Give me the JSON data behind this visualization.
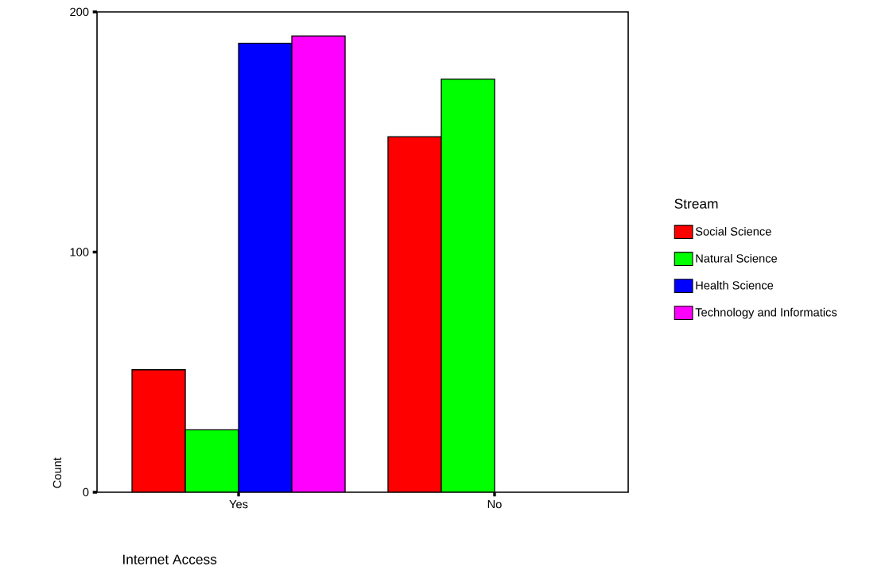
{
  "chart_data": {
    "type": "bar",
    "xlabel": "Internet Access",
    "ylabel": "Count",
    "legend_title": "Stream",
    "categories": [
      "Yes",
      "No"
    ],
    "series": [
      {
        "name": "Social Science",
        "color": "#ff0000",
        "values": [
          51,
          148
        ]
      },
      {
        "name": "Natural Science",
        "color": "#00ff00",
        "values": [
          26,
          172
        ]
      },
      {
        "name": "Health Science",
        "color": "#0000ff",
        "values": [
          187,
          null
        ]
      },
      {
        "name": "Technology and Informatics",
        "color": "#ff00ff",
        "values": [
          190,
          null
        ]
      }
    ],
    "ylim": [
      0,
      200
    ],
    "yticks": [
      0,
      100,
      200
    ],
    "grid": false,
    "legend": "right"
  }
}
